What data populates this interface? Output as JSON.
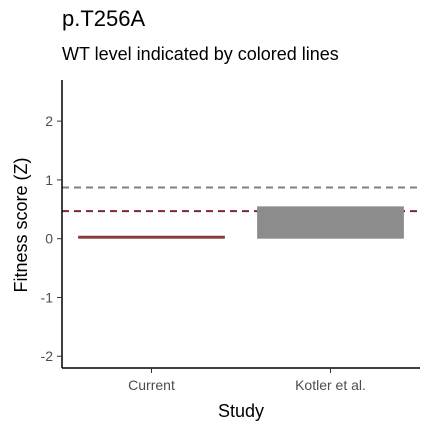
{
  "chart_data": {
    "type": "bar",
    "title": "p.T256A",
    "subtitle": "WT level indicated by colored lines",
    "xlabel": "Study",
    "ylabel": "Fitness score (Z)",
    "categories": [
      "Current",
      "Kotler et al."
    ],
    "values": [
      0.05,
      0.55
    ],
    "bar_colors": [
      "#8b3a3a",
      "#8c8c8c"
    ],
    "ylim": [
      -2.2,
      2.7
    ],
    "yticks": [
      -2,
      -1,
      0,
      1,
      2
    ],
    "reference_lines": [
      {
        "y": 0.87,
        "color": "#808080",
        "style": "dashed"
      },
      {
        "y": 0.47,
        "color": "#7b2a35",
        "style": "dashed"
      }
    ],
    "grid": false,
    "legend": "none"
  }
}
